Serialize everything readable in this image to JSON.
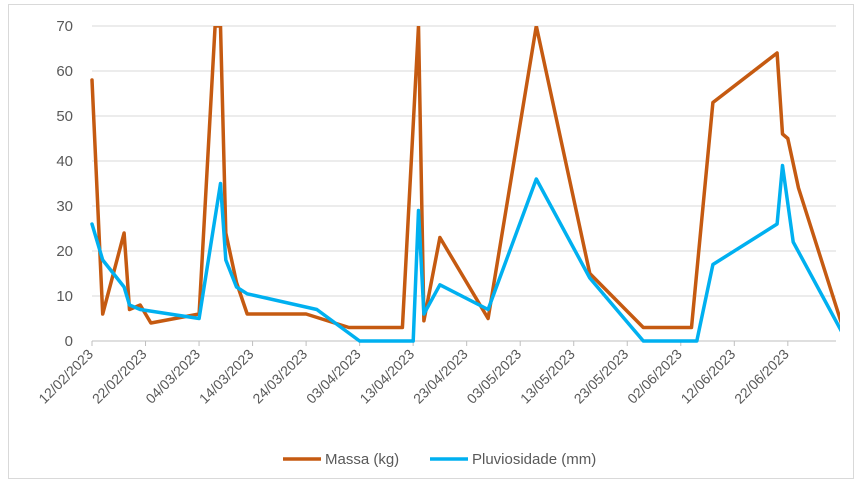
{
  "chart_data": {
    "type": "line",
    "title": "",
    "xlabel": "",
    "ylabel": "",
    "ylim": [
      0,
      70
    ],
    "yticks": [
      0,
      10,
      20,
      30,
      40,
      50,
      60,
      70
    ],
    "xlim": [
      "2023-02-12",
      "2023-07-01"
    ],
    "xtick_labels": [
      "12/02/2023",
      "22/02/2023",
      "04/03/2023",
      "14/03/2023",
      "24/03/2023",
      "03/04/2023",
      "13/04/2023",
      "23/04/2023",
      "03/05/2023",
      "13/05/2023",
      "23/05/2023",
      "02/06/2023",
      "12/06/2023",
      "22/06/2023"
    ],
    "grid": true,
    "legend_position": "bottom",
    "series": [
      {
        "name": "Massa (kg)",
        "color": "#C55A11",
        "points": [
          [
            "2023-02-12",
            58
          ],
          [
            "2023-02-14",
            6
          ],
          [
            "2023-02-18",
            24
          ],
          [
            "2023-02-19",
            7
          ],
          [
            "2023-02-21",
            8
          ],
          [
            "2023-02-23",
            4
          ],
          [
            "2023-03-04",
            6
          ],
          [
            "2023-03-07",
            70
          ],
          [
            "2023-03-08",
            70
          ],
          [
            "2023-03-09",
            24
          ],
          [
            "2023-03-11",
            13
          ],
          [
            "2023-03-13",
            6
          ],
          [
            "2023-03-24",
            6
          ],
          [
            "2023-04-01",
            3
          ],
          [
            "2023-04-11",
            3
          ],
          [
            "2023-04-14",
            70
          ],
          [
            "2023-04-15",
            4.5
          ],
          [
            "2023-04-18",
            23
          ],
          [
            "2023-04-27",
            5
          ],
          [
            "2023-05-06",
            70
          ],
          [
            "2023-05-16",
            15
          ],
          [
            "2023-05-26",
            3
          ],
          [
            "2023-06-04",
            3
          ],
          [
            "2023-06-08",
            53
          ],
          [
            "2023-06-20",
            64
          ],
          [
            "2023-06-21",
            46
          ],
          [
            "2023-06-22",
            45
          ],
          [
            "2023-06-24",
            34
          ],
          [
            "2023-07-02",
            4
          ]
        ]
      },
      {
        "name": "Pluviosidade (mm)",
        "color": "#00B0F0",
        "points": [
          [
            "2023-02-12",
            26
          ],
          [
            "2023-02-14",
            18
          ],
          [
            "2023-02-18",
            12
          ],
          [
            "2023-02-19",
            8
          ],
          [
            "2023-02-21",
            7
          ],
          [
            "2023-03-04",
            5
          ],
          [
            "2023-03-08",
            35
          ],
          [
            "2023-03-09",
            18
          ],
          [
            "2023-03-11",
            12
          ],
          [
            "2023-03-13",
            10.5
          ],
          [
            "2023-03-26",
            7
          ],
          [
            "2023-04-03",
            0
          ],
          [
            "2023-04-13",
            0
          ],
          [
            "2023-04-14",
            29
          ],
          [
            "2023-04-15",
            6
          ],
          [
            "2023-04-18",
            12.5
          ],
          [
            "2023-04-27",
            7
          ],
          [
            "2023-05-06",
            36
          ],
          [
            "2023-05-16",
            14
          ],
          [
            "2023-05-26",
            0
          ],
          [
            "2023-06-05",
            0
          ],
          [
            "2023-06-08",
            17
          ],
          [
            "2023-06-20",
            26
          ],
          [
            "2023-06-21",
            39
          ],
          [
            "2023-06-23",
            22
          ],
          [
            "2023-07-03",
            0
          ]
        ]
      }
    ]
  }
}
